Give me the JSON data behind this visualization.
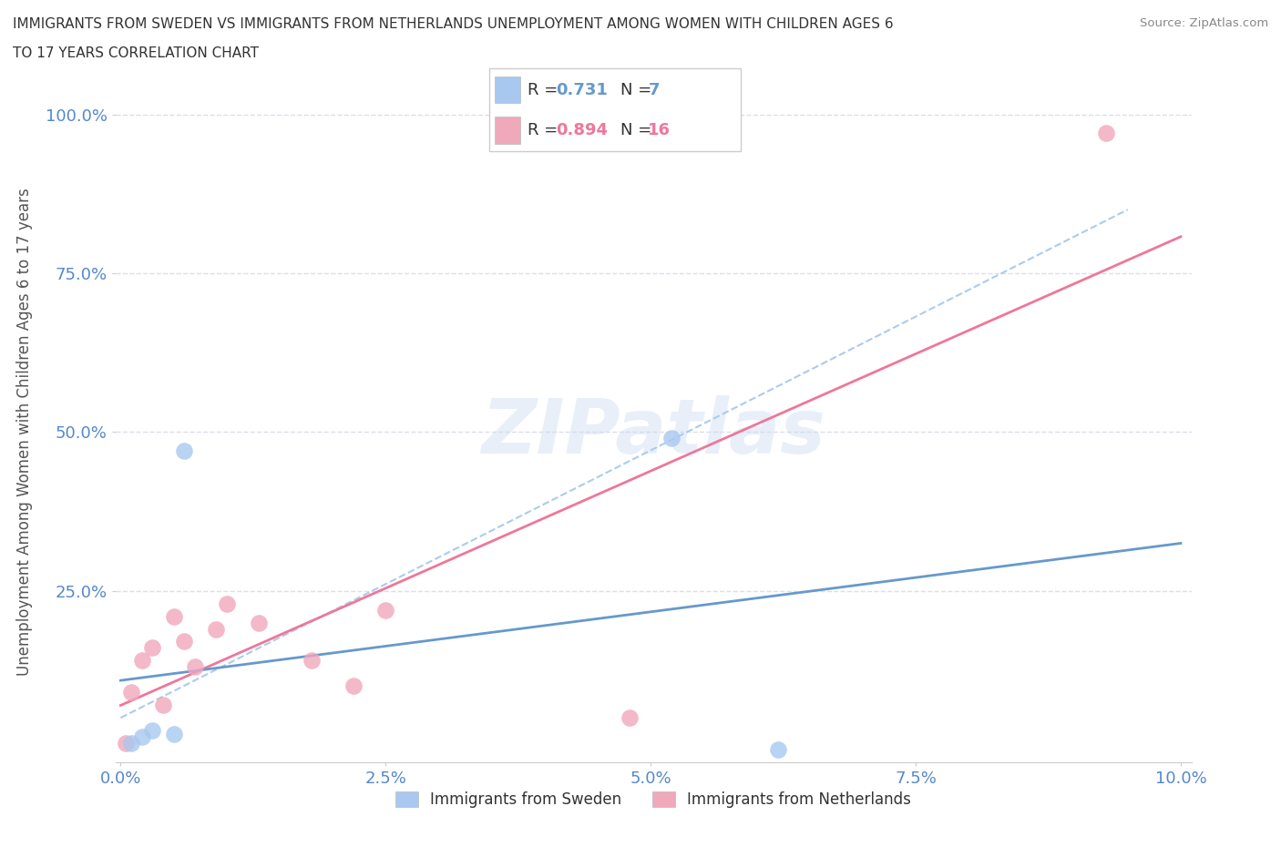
{
  "title_line1": "IMMIGRANTS FROM SWEDEN VS IMMIGRANTS FROM NETHERLANDS UNEMPLOYMENT AMONG WOMEN WITH CHILDREN AGES 6",
  "title_line2": "TO 17 YEARS CORRELATION CHART",
  "source": "Source: ZipAtlas.com",
  "ylabel": "Unemployment Among Women with Children Ages 6 to 17 years",
  "xlim": [
    0.0,
    10.0
  ],
  "ylim": [
    0.0,
    100.0
  ],
  "sweden_color": "#A8C8F0",
  "netherlands_color": "#F0A8BB",
  "sweden_line_color": "#6699CC",
  "netherlands_line_color": "#EE7799",
  "sweden_R": 0.731,
  "sweden_N": 7,
  "netherlands_R": 0.894,
  "netherlands_N": 16,
  "sweden_x": [
    0.1,
    0.2,
    0.3,
    0.5,
    0.6,
    5.2,
    6.2
  ],
  "sweden_y": [
    1.0,
    2.0,
    3.0,
    2.5,
    47.0,
    49.0,
    0.0
  ],
  "netherlands_x": [
    0.05,
    0.1,
    0.2,
    0.3,
    0.4,
    0.5,
    0.6,
    0.7,
    0.9,
    1.0,
    1.3,
    1.8,
    2.2,
    2.5,
    4.8,
    9.3
  ],
  "netherlands_y": [
    1.0,
    9.0,
    14.0,
    16.0,
    7.0,
    21.0,
    17.0,
    13.0,
    19.0,
    23.0,
    20.0,
    14.0,
    10.0,
    22.0,
    5.0,
    97.0
  ],
  "ref_line_color": "#AACCEE",
  "background_color": "#ffffff",
  "grid_color": "#DDDDEE",
  "watermark_text": "ZIPatlas",
  "legend_sweden_label": "Immigrants from Sweden",
  "legend_netherlands_label": "Immigrants from Netherlands",
  "tick_color": "#5588CC",
  "ytick_labels": [
    "25.0%",
    "50.0%",
    "75.0%",
    "100.0%"
  ],
  "ytick_values": [
    25,
    50,
    75,
    100
  ],
  "xtick_labels": [
    "0.0%",
    "2.5%",
    "5.0%",
    "7.5%",
    "10.0%"
  ],
  "xtick_values": [
    0,
    2.5,
    5.0,
    7.5,
    10.0
  ]
}
